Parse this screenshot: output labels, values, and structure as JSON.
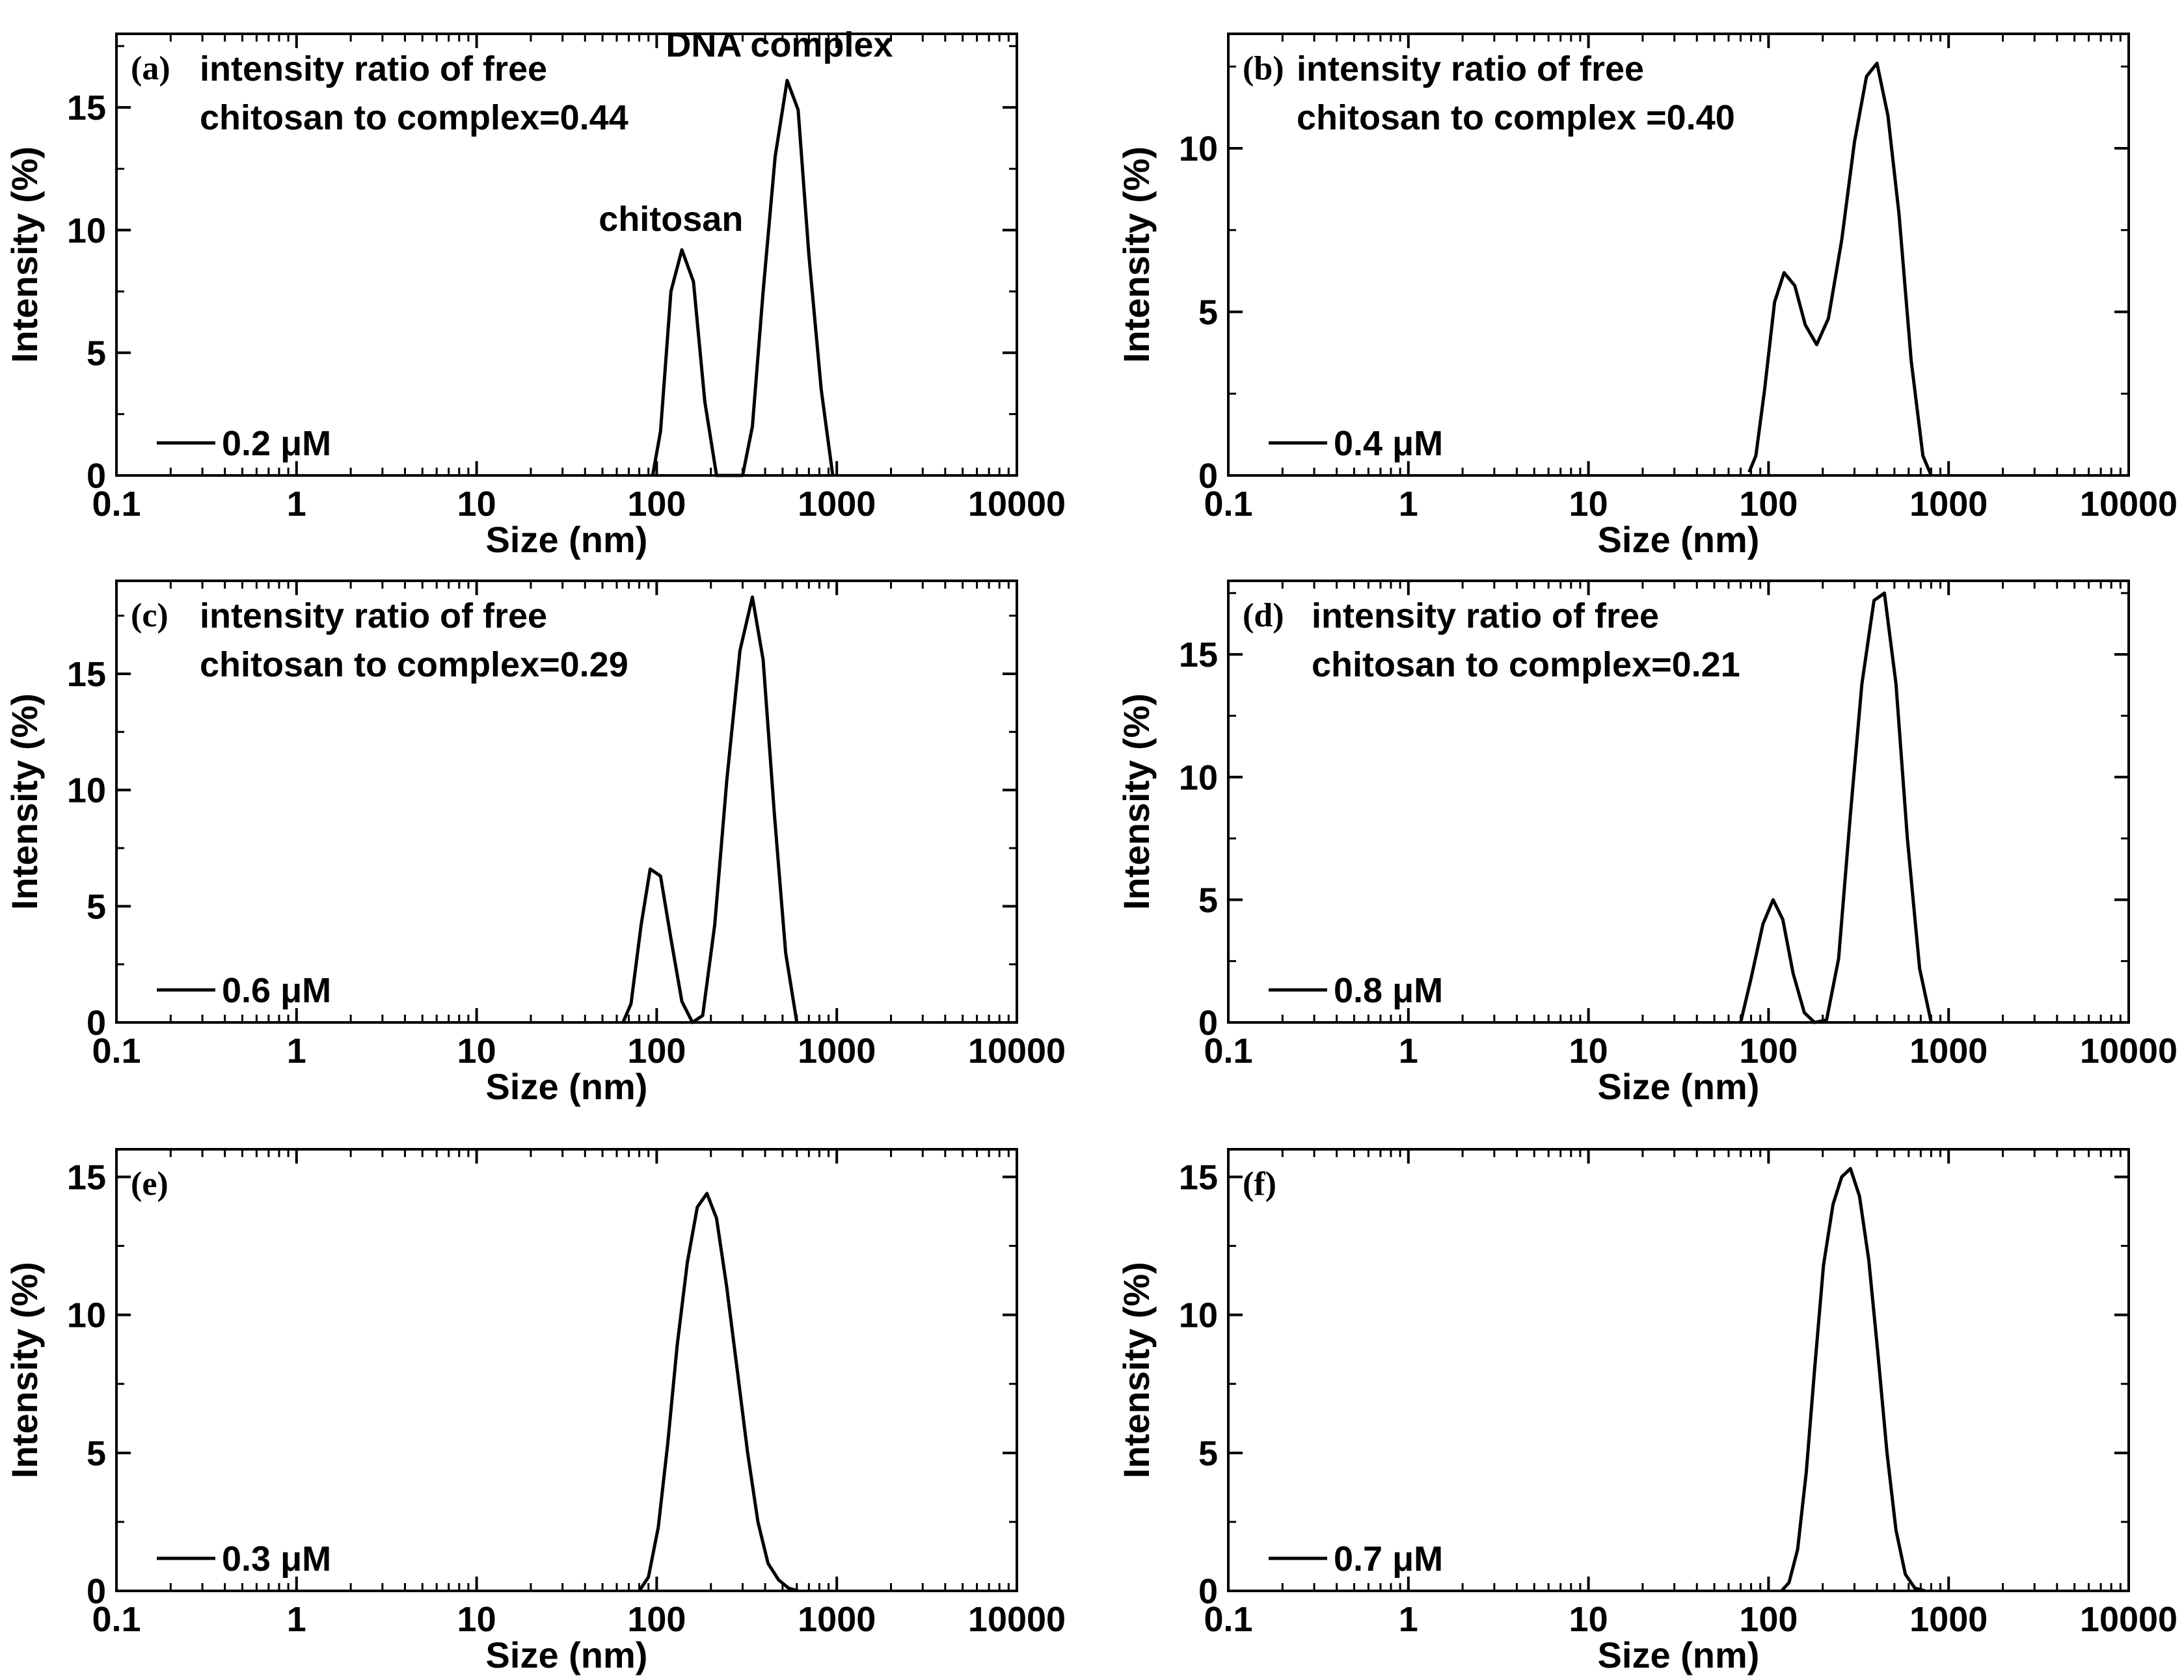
{
  "figure": {
    "x_ticks": [
      "0.1",
      "1",
      "10",
      "100",
      "1000",
      "10000"
    ],
    "x_tick_values": [
      0.1,
      1,
      10,
      100,
      1000,
      10000
    ]
  },
  "chart_data": [
    {
      "type": "line",
      "panel": "(a)",
      "title": "",
      "xlabel": "Size (nm)",
      "ylabel": "Intensity (%)",
      "xscale": "log",
      "xlim": [
        0.1,
        10000
      ],
      "ylim": [
        0,
        18
      ],
      "y_ticks": [
        0,
        5,
        10,
        15
      ],
      "annotation_lines": [
        "intensity ratio of free",
        "chitosan to complex=0.44"
      ],
      "peak_labels": [
        {
          "text": "chitosan",
          "x": 120,
          "y": 9.6
        },
        {
          "text": "DNA complex",
          "x": 480,
          "y": 16.7
        }
      ],
      "series": [
        {
          "name": "0.2 μM",
          "x": [
            95,
            105,
            120,
            138,
            160,
            185,
            215,
            300,
            340,
            390,
            455,
            530,
            610,
            700,
            820,
            950
          ],
          "y": [
            0,
            1.8,
            7.5,
            9.2,
            7.9,
            3.0,
            0,
            0,
            2.0,
            7.5,
            13.0,
            16.1,
            14.9,
            9.0,
            3.5,
            0
          ]
        }
      ]
    },
    {
      "type": "line",
      "panel": "(b)",
      "title": "",
      "xlabel": "Size (nm)",
      "ylabel": "Intensity (%)",
      "xscale": "log",
      "xlim": [
        0.1,
        10000
      ],
      "ylim": [
        0,
        13.5
      ],
      "y_ticks": [
        0,
        5,
        10
      ],
      "annotation_lines": [
        "intensity ratio of free",
        "chitosan to complex =0.40"
      ],
      "peak_labels": [],
      "series": [
        {
          "name": "0.4 μM",
          "x": [
            78,
            85,
            95,
            108,
            122,
            140,
            160,
            185,
            215,
            255,
            300,
            350,
            400,
            460,
            530,
            620,
            720,
            800
          ],
          "y": [
            0.1,
            0.6,
            2.6,
            5.3,
            6.2,
            5.8,
            4.6,
            4.0,
            4.8,
            7.2,
            10.2,
            12.2,
            12.6,
            11.0,
            8.0,
            3.5,
            0.6,
            0
          ]
        }
      ]
    },
    {
      "type": "line",
      "panel": "(c)",
      "title": "",
      "xlabel": "Size (nm)",
      "ylabel": "Intensity (%)",
      "xscale": "log",
      "xlim": [
        0.1,
        10000
      ],
      "ylim": [
        0,
        19
      ],
      "y_ticks": [
        0,
        5,
        10,
        15
      ],
      "annotation_lines": [
        "intensity ratio of free",
        "chitosan to complex=0.29"
      ],
      "peak_labels": [],
      "series": [
        {
          "name": "0.6 μM",
          "x": [
            65,
            72,
            82,
            92,
            105,
            120,
            138,
            158,
            180,
            210,
            245,
            290,
            340,
            390,
            450,
            520,
            600
          ],
          "y": [
            0,
            0.8,
            4.2,
            6.6,
            6.3,
            3.6,
            0.9,
            0,
            0.3,
            4.2,
            10.4,
            16.0,
            18.3,
            15.6,
            9.0,
            3.0,
            0
          ]
        }
      ]
    },
    {
      "type": "line",
      "panel": "(d)",
      "title": "",
      "xlabel": "Size (nm)",
      "ylabel": "Intensity (%)",
      "xscale": "log",
      "xlim": [
        0.1,
        10000
      ],
      "ylim": [
        0,
        18
      ],
      "y_ticks": [
        0,
        5,
        10,
        15
      ],
      "annotation_lines": [
        "intensity ratio of free",
        "chitosan to complex=0.21"
      ],
      "peak_labels": [],
      "series": [
        {
          "name": "0.8 μM",
          "x": [
            70,
            80,
            93,
            106,
            120,
            137,
            158,
            180,
            210,
            245,
            285,
            330,
            385,
            440,
            510,
            590,
            690,
            800
          ],
          "y": [
            0,
            1.8,
            4.0,
            5.0,
            4.2,
            2.0,
            0.4,
            0,
            0.1,
            2.6,
            8.5,
            13.8,
            17.2,
            17.5,
            13.8,
            7.5,
            2.2,
            0
          ]
        }
      ]
    },
    {
      "type": "line",
      "panel": "(e)",
      "title": "",
      "xlabel": "Size (nm)",
      "ylabel": "Intensity (%)",
      "xscale": "log",
      "xlim": [
        0.1,
        10000
      ],
      "ylim": [
        0,
        16
      ],
      "y_ticks": [
        0,
        5,
        10,
        15
      ],
      "annotation_lines": [],
      "peak_labels": [],
      "series": [
        {
          "name": "0.3 μM",
          "x": [
            80,
            90,
            102,
            115,
            130,
            148,
            168,
            190,
            215,
            245,
            280,
            320,
            365,
            415,
            475,
            540,
            610
          ],
          "y": [
            0,
            0.5,
            2.3,
            5.3,
            8.9,
            11.9,
            13.9,
            14.4,
            13.5,
            11.0,
            8.0,
            5.0,
            2.5,
            1.0,
            0.4,
            0.1,
            0
          ]
        }
      ]
    },
    {
      "type": "line",
      "panel": "(f)",
      "title": "",
      "xlabel": "Size (nm)",
      "ylabel": "Intensity (%)",
      "xscale": "log",
      "xlim": [
        0.1,
        10000
      ],
      "ylim": [
        0,
        16
      ],
      "y_ticks": [
        0,
        5,
        10,
        15
      ],
      "annotation_lines": [],
      "peak_labels": [],
      "series": [
        {
          "name": "0.7 μM",
          "x": [
            118,
            130,
            145,
            162,
            180,
            202,
            228,
            255,
            285,
            320,
            360,
            405,
            455,
            510,
            575,
            650,
            740
          ],
          "y": [
            0,
            0.3,
            1.5,
            4.3,
            8.0,
            11.8,
            14.0,
            15.0,
            15.3,
            14.3,
            12.0,
            8.6,
            5.0,
            2.2,
            0.6,
            0.1,
            0
          ]
        }
      ]
    }
  ]
}
